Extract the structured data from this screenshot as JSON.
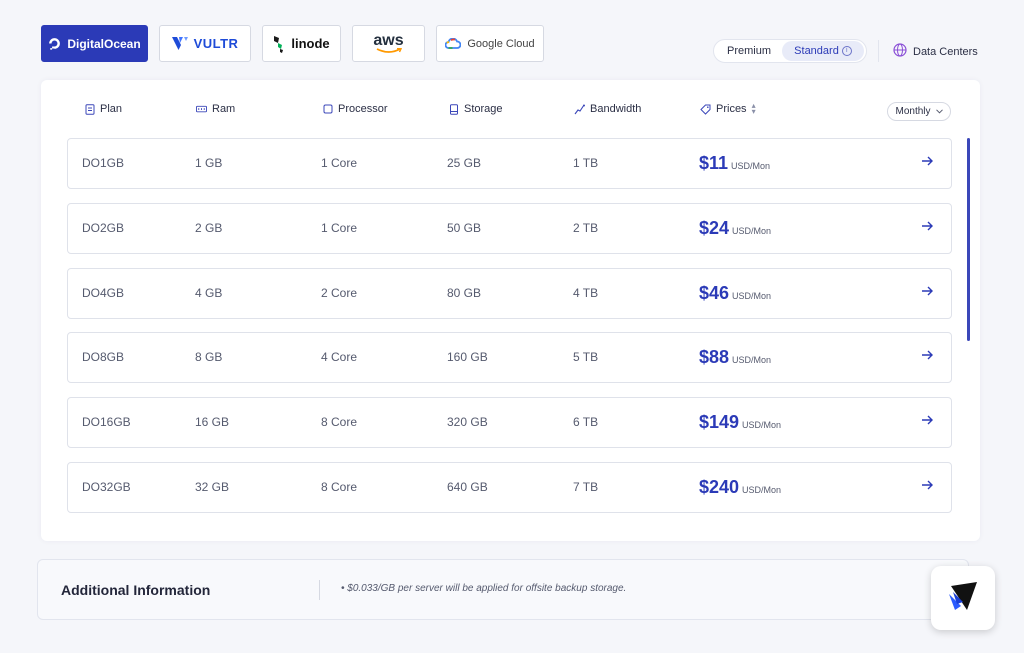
{
  "providers": [
    {
      "label": "DigitalOcean",
      "icon": "digitalocean-logo-icon",
      "active": true
    },
    {
      "label": "VULTR",
      "icon": "vultr-logo-icon",
      "active": false
    },
    {
      "label": "linode",
      "icon": "linode-logo-icon",
      "active": false
    },
    {
      "label": "aws",
      "icon": "aws-logo-icon",
      "active": false
    },
    {
      "label": "Google Cloud",
      "icon": "google-cloud-logo-icon",
      "active": false
    }
  ],
  "tier_switch": {
    "premium": "Premium",
    "standard": "Standard",
    "selected": "Standard"
  },
  "data_centers_label": "Data Centers",
  "table": {
    "headers": {
      "plan": "Plan",
      "ram": "Ram",
      "processor": "Processor",
      "storage": "Storage",
      "bandwidth": "Bandwidth",
      "prices": "Prices"
    },
    "period": "Monthly",
    "rows": [
      {
        "plan": "DO1GB",
        "ram": "1 GB",
        "processor": "1 Core",
        "storage": "25 GB",
        "bandwidth": "1 TB",
        "price": "$11",
        "unit": "USD/Mon"
      },
      {
        "plan": "DO2GB",
        "ram": "2 GB",
        "processor": "1 Core",
        "storage": "50 GB",
        "bandwidth": "2 TB",
        "price": "$24",
        "unit": "USD/Mon"
      },
      {
        "plan": "DO4GB",
        "ram": "4 GB",
        "processor": "2 Core",
        "storage": "80 GB",
        "bandwidth": "4 TB",
        "price": "$46",
        "unit": "USD/Mon"
      },
      {
        "plan": "DO8GB",
        "ram": "8 GB",
        "processor": "4 Core",
        "storage": "160 GB",
        "bandwidth": "5 TB",
        "price": "$88",
        "unit": "USD/Mon"
      },
      {
        "plan": "DO16GB",
        "ram": "16 GB",
        "processor": "8 Core",
        "storage": "320 GB",
        "bandwidth": "6 TB",
        "price": "$149",
        "unit": "USD/Mon"
      },
      {
        "plan": "DO32GB",
        "ram": "32 GB",
        "processor": "8 Core",
        "storage": "640 GB",
        "bandwidth": "7 TB",
        "price": "$240",
        "unit": "USD/Mon"
      }
    ]
  },
  "additional_info": {
    "title": "Additional Information",
    "note": "$0.033/GB per server will be applied for offsite backup storage."
  },
  "colors": {
    "accent": "#2b3ab7",
    "border": "#dfe2ea",
    "background": "#f5f6fa"
  }
}
